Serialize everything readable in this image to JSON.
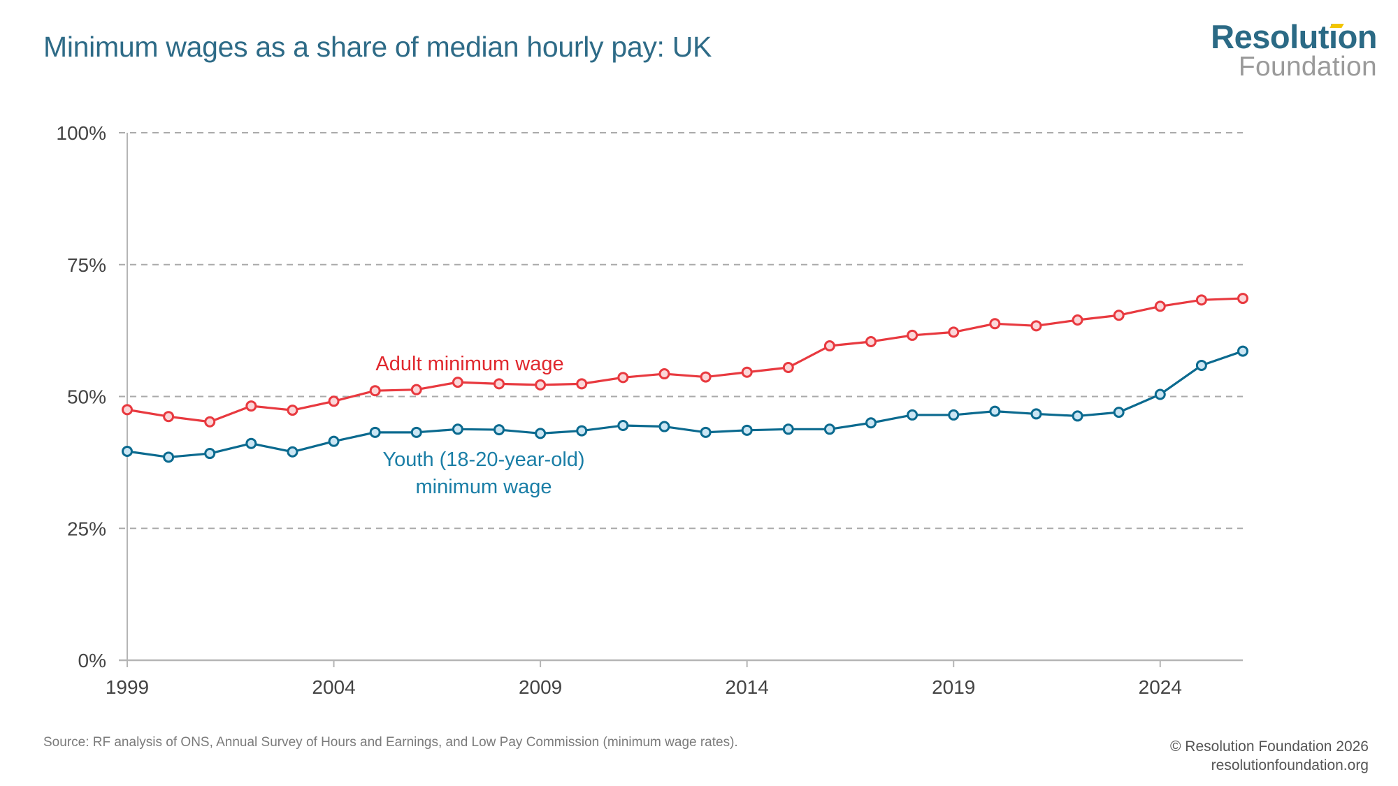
{
  "header": {
    "title": "Minimum wages as a share of median hourly pay: UK",
    "logo_line1": "Resolution",
    "logo_line2": "Foundation"
  },
  "footer": {
    "source": "Source: RF analysis of ONS, Annual Survey of Hours and Earnings, and Low Pay Commission (minimum wage rates).",
    "copyright": "© Resolution Foundation 2026",
    "website": "resolutionfoundation.org"
  },
  "colors": {
    "title": "#2e6b87",
    "adult_line": "#e8393f",
    "adult_fill": "#fbd7d9",
    "youth_line": "#0b6a8f",
    "youth_fill": "#cbe6f4",
    "grid": "#aaaaaa",
    "axis": "#b5b5b5",
    "logo_accent": "#f2c500"
  },
  "chart_data": {
    "type": "line",
    "title": "Minimum wages as a share of median hourly pay: UK",
    "xlabel": "",
    "ylabel": "",
    "x": [
      1999,
      2000,
      2001,
      2002,
      2003,
      2004,
      2005,
      2006,
      2007,
      2008,
      2009,
      2010,
      2011,
      2012,
      2013,
      2014,
      2015,
      2016,
      2017,
      2018,
      2019,
      2020,
      2021,
      2022,
      2023,
      2024,
      2025,
      2026
    ],
    "xlim": [
      1999,
      2026
    ],
    "xticks": [
      1999,
      2004,
      2009,
      2014,
      2019,
      2024
    ],
    "xtick_labels": [
      "1999",
      "2004",
      "2009",
      "2014",
      "2019",
      "2024"
    ],
    "ylim": [
      0,
      100
    ],
    "yticks": [
      0,
      25,
      50,
      75,
      100
    ],
    "ytick_labels": [
      "0%",
      "25%",
      "50%",
      "75%",
      "100%"
    ],
    "grid": "horizontal dashed",
    "series": [
      {
        "name": "Adult minimum wage",
        "label": "Adult minimum wage",
        "color": "#e8393f",
        "values": [
          47.5,
          46.2,
          45.2,
          48.2,
          47.4,
          49.1,
          51.1,
          51.3,
          52.7,
          52.4,
          52.2,
          52.4,
          53.6,
          54.3,
          53.7,
          54.6,
          55.5,
          59.6,
          60.4,
          61.6,
          62.2,
          63.8,
          63.4,
          64.5,
          65.4,
          67.1,
          68.3,
          68.6
        ]
      },
      {
        "name": "Youth (18-20-year-old) minimum wage",
        "label_line1": "Youth (18-20-year-old)",
        "label_line2": "minimum wage",
        "color": "#0b6a8f",
        "values": [
          39.6,
          38.5,
          39.2,
          41.1,
          39.5,
          41.5,
          43.2,
          43.2,
          43.8,
          43.7,
          43.0,
          43.5,
          44.5,
          44.3,
          43.2,
          43.6,
          43.8,
          43.8,
          45.0,
          46.5,
          46.5,
          47.2,
          46.7,
          46.3,
          47.0,
          50.4,
          55.9,
          58.6
        ]
      }
    ],
    "annotations": [
      {
        "text": "Adult minimum wage",
        "series": 0
      },
      {
        "text": "Youth (18-20-year-old) minimum wage",
        "series": 1
      }
    ]
  }
}
